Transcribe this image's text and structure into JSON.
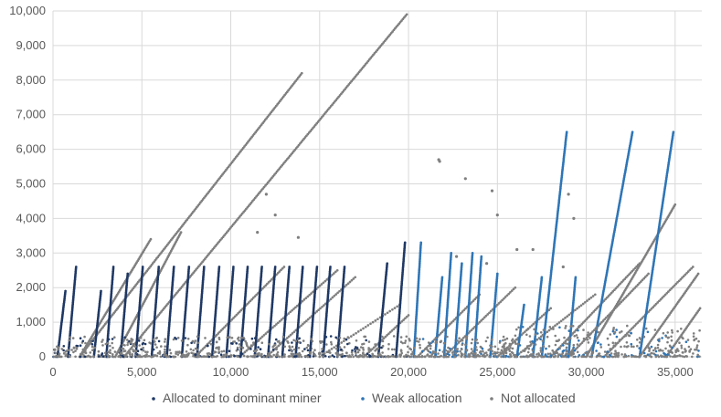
{
  "chart_data": {
    "type": "scatter",
    "title": "",
    "xlabel": "",
    "ylabel": "",
    "xlim": [
      0,
      36500
    ],
    "ylim": [
      0,
      10000
    ],
    "x_ticks": [
      0,
      5000,
      10000,
      15000,
      20000,
      25000,
      30000,
      35000
    ],
    "x_tick_labels": [
      "0",
      "5,000",
      "10,000",
      "15,000",
      "20,000",
      "25,000",
      "30,000",
      "35,000"
    ],
    "y_ticks": [
      0,
      1000,
      2000,
      3000,
      4000,
      5000,
      6000,
      7000,
      8000,
      9000,
      10000
    ],
    "y_tick_labels": [
      "0",
      "1,000",
      "2,000",
      "3,000",
      "4,000",
      "5,000",
      "6,000",
      "7,000",
      "8,000",
      "9,000",
      "10,000"
    ],
    "grid": true,
    "legend_position": "bottom",
    "series": [
      {
        "name": "Allocated to dominant miner",
        "color": "#1f3864",
        "ramps": [
          {
            "x0": 250,
            "x1": 700,
            "ymax": 1900
          },
          {
            "x0": 850,
            "x1": 1300,
            "ymax": 2600
          },
          {
            "x0": 2300,
            "x1": 2700,
            "ymax": 1900
          },
          {
            "x0": 3000,
            "x1": 3400,
            "ymax": 2600
          },
          {
            "x0": 3800,
            "x1": 4200,
            "ymax": 2400
          },
          {
            "x0": 4650,
            "x1": 5050,
            "ymax": 2600
          },
          {
            "x0": 5550,
            "x1": 5950,
            "ymax": 2600
          },
          {
            "x0": 6400,
            "x1": 6800,
            "ymax": 2600
          },
          {
            "x0": 7250,
            "x1": 7650,
            "ymax": 2600
          },
          {
            "x0": 8100,
            "x1": 8500,
            "ymax": 2600
          },
          {
            "x0": 8950,
            "x1": 9350,
            "ymax": 2600
          },
          {
            "x0": 9750,
            "x1": 10150,
            "ymax": 2600
          },
          {
            "x0": 10550,
            "x1": 10950,
            "ymax": 2600
          },
          {
            "x0": 11350,
            "x1": 11750,
            "ymax": 2600
          },
          {
            "x0": 12100,
            "x1": 12500,
            "ymax": 2600
          },
          {
            "x0": 12900,
            "x1": 13300,
            "ymax": 2600
          },
          {
            "x0": 13650,
            "x1": 14050,
            "ymax": 2600
          },
          {
            "x0": 14450,
            "x1": 14850,
            "ymax": 2600
          },
          {
            "x0": 15200,
            "x1": 15600,
            "ymax": 2600
          },
          {
            "x0": 16000,
            "x1": 16400,
            "ymax": 2600
          },
          {
            "x0": 18300,
            "x1": 18800,
            "ymax": 2700
          },
          {
            "x0": 19300,
            "x1": 19800,
            "ymax": 3300
          }
        ]
      },
      {
        "name": "Weak allocation",
        "color": "#2e75b6",
        "ramps": [
          {
            "x0": 20300,
            "x1": 20700,
            "ymax": 3300
          },
          {
            "x0": 21500,
            "x1": 21900,
            "ymax": 2300
          },
          {
            "x0": 22000,
            "x1": 22400,
            "ymax": 3000
          },
          {
            "x0": 22600,
            "x1": 23000,
            "ymax": 2700
          },
          {
            "x0": 23200,
            "x1": 23600,
            "ymax": 3000
          },
          {
            "x0": 23700,
            "x1": 24100,
            "ymax": 2900
          },
          {
            "x0": 24600,
            "x1": 25000,
            "ymax": 2400
          },
          {
            "x0": 26100,
            "x1": 26500,
            "ymax": 1500
          },
          {
            "x0": 27000,
            "x1": 27500,
            "ymax": 2300
          },
          {
            "x0": 27500,
            "x1": 28900,
            "ymax": 6500
          },
          {
            "x0": 29000,
            "x1": 29400,
            "ymax": 2300
          },
          {
            "x0": 30300,
            "x1": 32600,
            "ymax": 6500
          },
          {
            "x0": 33000,
            "x1": 34900,
            "ymax": 6500
          }
        ]
      },
      {
        "name": "Not allocated",
        "color": "#7f7f7f",
        "ramps": [
          {
            "x0": 1500,
            "x1": 14000,
            "ymax": 8200
          },
          {
            "x0": 4000,
            "x1": 19900,
            "ymax": 9900
          },
          {
            "x0": 1500,
            "x1": 5500,
            "ymax": 3400
          },
          {
            "x0": 3500,
            "x1": 7200,
            "ymax": 3600
          },
          {
            "x0": 8000,
            "x1": 13000,
            "ymax": 2600
          },
          {
            "x0": 10500,
            "x1": 16000,
            "ymax": 2500
          },
          {
            "x0": 12000,
            "x1": 17000,
            "ymax": 2300
          },
          {
            "x0": 15000,
            "x1": 19500,
            "ymax": 1500
          },
          {
            "x0": 17500,
            "x1": 20000,
            "ymax": 1200
          },
          {
            "x0": 20500,
            "x1": 24000,
            "ymax": 1800
          },
          {
            "x0": 22000,
            "x1": 26000,
            "ymax": 2000
          },
          {
            "x0": 25000,
            "x1": 28000,
            "ymax": 1400
          },
          {
            "x0": 26000,
            "x1": 30500,
            "ymax": 1800
          },
          {
            "x0": 28000,
            "x1": 33000,
            "ymax": 2700
          },
          {
            "x0": 29000,
            "x1": 33500,
            "ymax": 2400
          },
          {
            "x0": 30000,
            "x1": 35000,
            "ymax": 4400
          },
          {
            "x0": 31000,
            "x1": 36000,
            "ymax": 2600
          },
          {
            "x0": 33000,
            "x1": 36300,
            "ymax": 2400
          },
          {
            "x0": 34500,
            "x1": 36400,
            "ymax": 1400
          }
        ],
        "points": [
          [
            21700,
            5700
          ],
          [
            21750,
            5650
          ],
          [
            23200,
            5150
          ],
          [
            24700,
            4800
          ],
          [
            25000,
            4100
          ],
          [
            24400,
            2700
          ],
          [
            26100,
            3100
          ],
          [
            27000,
            3100
          ],
          [
            29000,
            4700
          ],
          [
            29300,
            4000
          ],
          [
            28700,
            2600
          ],
          [
            13800,
            3450
          ],
          [
            12000,
            4700
          ],
          [
            12500,
            4100
          ],
          [
            11500,
            3600
          ],
          [
            22700,
            2900
          ]
        ]
      }
    ]
  }
}
